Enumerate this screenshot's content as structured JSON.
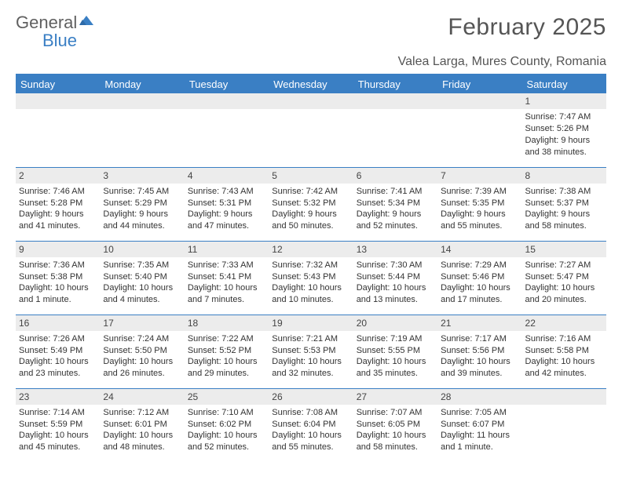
{
  "logo": {
    "word1": "General",
    "word2": "Blue"
  },
  "title": "February 2025",
  "location": "Valea Larga, Mures County, Romania",
  "colors": {
    "header_bar": "#3a7fc4",
    "daynum_bg": "#ececec",
    "text": "#333333",
    "title_text": "#555555",
    "logo_gray": "#606060",
    "logo_blue": "#3a7fc4",
    "background": "#ffffff"
  },
  "dow": [
    "Sunday",
    "Monday",
    "Tuesday",
    "Wednesday",
    "Thursday",
    "Friday",
    "Saturday"
  ],
  "weeks": [
    [
      {
        "n": "",
        "sr": "",
        "ss": "",
        "dl": ""
      },
      {
        "n": "",
        "sr": "",
        "ss": "",
        "dl": ""
      },
      {
        "n": "",
        "sr": "",
        "ss": "",
        "dl": ""
      },
      {
        "n": "",
        "sr": "",
        "ss": "",
        "dl": ""
      },
      {
        "n": "",
        "sr": "",
        "ss": "",
        "dl": ""
      },
      {
        "n": "",
        "sr": "",
        "ss": "",
        "dl": ""
      },
      {
        "n": "1",
        "sr": "Sunrise: 7:47 AM",
        "ss": "Sunset: 5:26 PM",
        "dl": "Daylight: 9 hours and 38 minutes."
      }
    ],
    [
      {
        "n": "2",
        "sr": "Sunrise: 7:46 AM",
        "ss": "Sunset: 5:28 PM",
        "dl": "Daylight: 9 hours and 41 minutes."
      },
      {
        "n": "3",
        "sr": "Sunrise: 7:45 AM",
        "ss": "Sunset: 5:29 PM",
        "dl": "Daylight: 9 hours and 44 minutes."
      },
      {
        "n": "4",
        "sr": "Sunrise: 7:43 AM",
        "ss": "Sunset: 5:31 PM",
        "dl": "Daylight: 9 hours and 47 minutes."
      },
      {
        "n": "5",
        "sr": "Sunrise: 7:42 AM",
        "ss": "Sunset: 5:32 PM",
        "dl": "Daylight: 9 hours and 50 minutes."
      },
      {
        "n": "6",
        "sr": "Sunrise: 7:41 AM",
        "ss": "Sunset: 5:34 PM",
        "dl": "Daylight: 9 hours and 52 minutes."
      },
      {
        "n": "7",
        "sr": "Sunrise: 7:39 AM",
        "ss": "Sunset: 5:35 PM",
        "dl": "Daylight: 9 hours and 55 minutes."
      },
      {
        "n": "8",
        "sr": "Sunrise: 7:38 AM",
        "ss": "Sunset: 5:37 PM",
        "dl": "Daylight: 9 hours and 58 minutes."
      }
    ],
    [
      {
        "n": "9",
        "sr": "Sunrise: 7:36 AM",
        "ss": "Sunset: 5:38 PM",
        "dl": "Daylight: 10 hours and 1 minute."
      },
      {
        "n": "10",
        "sr": "Sunrise: 7:35 AM",
        "ss": "Sunset: 5:40 PM",
        "dl": "Daylight: 10 hours and 4 minutes."
      },
      {
        "n": "11",
        "sr": "Sunrise: 7:33 AM",
        "ss": "Sunset: 5:41 PM",
        "dl": "Daylight: 10 hours and 7 minutes."
      },
      {
        "n": "12",
        "sr": "Sunrise: 7:32 AM",
        "ss": "Sunset: 5:43 PM",
        "dl": "Daylight: 10 hours and 10 minutes."
      },
      {
        "n": "13",
        "sr": "Sunrise: 7:30 AM",
        "ss": "Sunset: 5:44 PM",
        "dl": "Daylight: 10 hours and 13 minutes."
      },
      {
        "n": "14",
        "sr": "Sunrise: 7:29 AM",
        "ss": "Sunset: 5:46 PM",
        "dl": "Daylight: 10 hours and 17 minutes."
      },
      {
        "n": "15",
        "sr": "Sunrise: 7:27 AM",
        "ss": "Sunset: 5:47 PM",
        "dl": "Daylight: 10 hours and 20 minutes."
      }
    ],
    [
      {
        "n": "16",
        "sr": "Sunrise: 7:26 AM",
        "ss": "Sunset: 5:49 PM",
        "dl": "Daylight: 10 hours and 23 minutes."
      },
      {
        "n": "17",
        "sr": "Sunrise: 7:24 AM",
        "ss": "Sunset: 5:50 PM",
        "dl": "Daylight: 10 hours and 26 minutes."
      },
      {
        "n": "18",
        "sr": "Sunrise: 7:22 AM",
        "ss": "Sunset: 5:52 PM",
        "dl": "Daylight: 10 hours and 29 minutes."
      },
      {
        "n": "19",
        "sr": "Sunrise: 7:21 AM",
        "ss": "Sunset: 5:53 PM",
        "dl": "Daylight: 10 hours and 32 minutes."
      },
      {
        "n": "20",
        "sr": "Sunrise: 7:19 AM",
        "ss": "Sunset: 5:55 PM",
        "dl": "Daylight: 10 hours and 35 minutes."
      },
      {
        "n": "21",
        "sr": "Sunrise: 7:17 AM",
        "ss": "Sunset: 5:56 PM",
        "dl": "Daylight: 10 hours and 39 minutes."
      },
      {
        "n": "22",
        "sr": "Sunrise: 7:16 AM",
        "ss": "Sunset: 5:58 PM",
        "dl": "Daylight: 10 hours and 42 minutes."
      }
    ],
    [
      {
        "n": "23",
        "sr": "Sunrise: 7:14 AM",
        "ss": "Sunset: 5:59 PM",
        "dl": "Daylight: 10 hours and 45 minutes."
      },
      {
        "n": "24",
        "sr": "Sunrise: 7:12 AM",
        "ss": "Sunset: 6:01 PM",
        "dl": "Daylight: 10 hours and 48 minutes."
      },
      {
        "n": "25",
        "sr": "Sunrise: 7:10 AM",
        "ss": "Sunset: 6:02 PM",
        "dl": "Daylight: 10 hours and 52 minutes."
      },
      {
        "n": "26",
        "sr": "Sunrise: 7:08 AM",
        "ss": "Sunset: 6:04 PM",
        "dl": "Daylight: 10 hours and 55 minutes."
      },
      {
        "n": "27",
        "sr": "Sunrise: 7:07 AM",
        "ss": "Sunset: 6:05 PM",
        "dl": "Daylight: 10 hours and 58 minutes."
      },
      {
        "n": "28",
        "sr": "Sunrise: 7:05 AM",
        "ss": "Sunset: 6:07 PM",
        "dl": "Daylight: 11 hours and 1 minute."
      },
      {
        "n": "",
        "sr": "",
        "ss": "",
        "dl": ""
      }
    ]
  ]
}
